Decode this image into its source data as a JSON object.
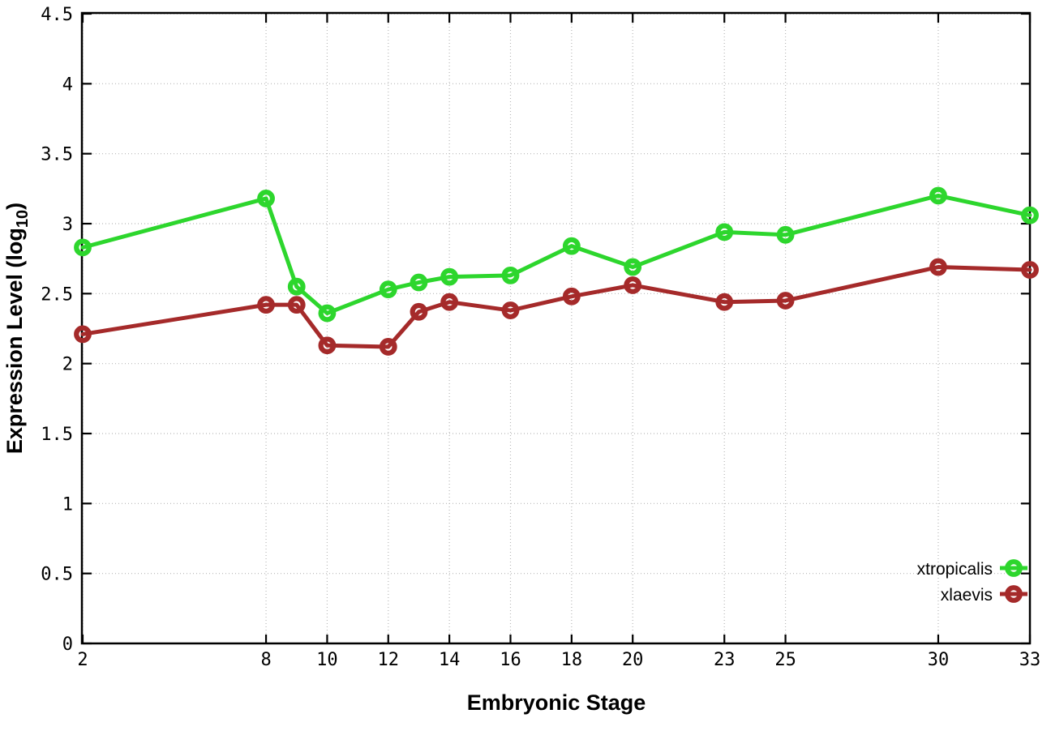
{
  "chart_data": {
    "type": "line",
    "title": "",
    "xlabel": "Embryonic Stage",
    "ylabel": {
      "pre": "Expression Level (log",
      "sub": "10",
      "post": ")"
    },
    "xlim": [
      2,
      33
    ],
    "ylim": [
      0,
      4.5
    ],
    "xticks": [
      2,
      8,
      10,
      12,
      14,
      16,
      18,
      20,
      23,
      25,
      30,
      33
    ],
    "xtick_labels": [
      "2",
      "8",
      "10",
      "12",
      "14",
      "16",
      "18",
      "20",
      "23",
      "25",
      "30",
      "33"
    ],
    "yticks": [
      0,
      0.5,
      1,
      1.5,
      2,
      2.5,
      3,
      3.5,
      4,
      4.5
    ],
    "ytick_labels": [
      "0",
      "0.5",
      "1",
      "1.5",
      "2",
      "2.5",
      "3",
      "3.5",
      "4",
      "4.5"
    ],
    "grid": true,
    "legend_position": "bottom-right",
    "marker": "open-circle",
    "x": [
      2,
      8,
      9,
      10,
      12,
      13,
      14,
      16,
      18,
      20,
      23,
      25,
      30,
      33
    ],
    "series": [
      {
        "name": "xtropicalis",
        "color": "#2dd62d",
        "values": [
          2.83,
          3.18,
          2.55,
          2.36,
          2.53,
          2.58,
          2.62,
          2.63,
          2.84,
          2.69,
          2.94,
          2.92,
          3.2,
          3.06
        ]
      },
      {
        "name": "xlaevis",
        "color": "#a52a2a",
        "values": [
          2.21,
          2.42,
          2.42,
          2.13,
          2.12,
          2.37,
          2.44,
          2.38,
          2.48,
          2.56,
          2.44,
          2.45,
          2.69,
          2.67
        ]
      }
    ]
  },
  "style_colors": {
    "axis": "#000000",
    "grid": "#b8b8b8",
    "background": "#ffffff"
  }
}
